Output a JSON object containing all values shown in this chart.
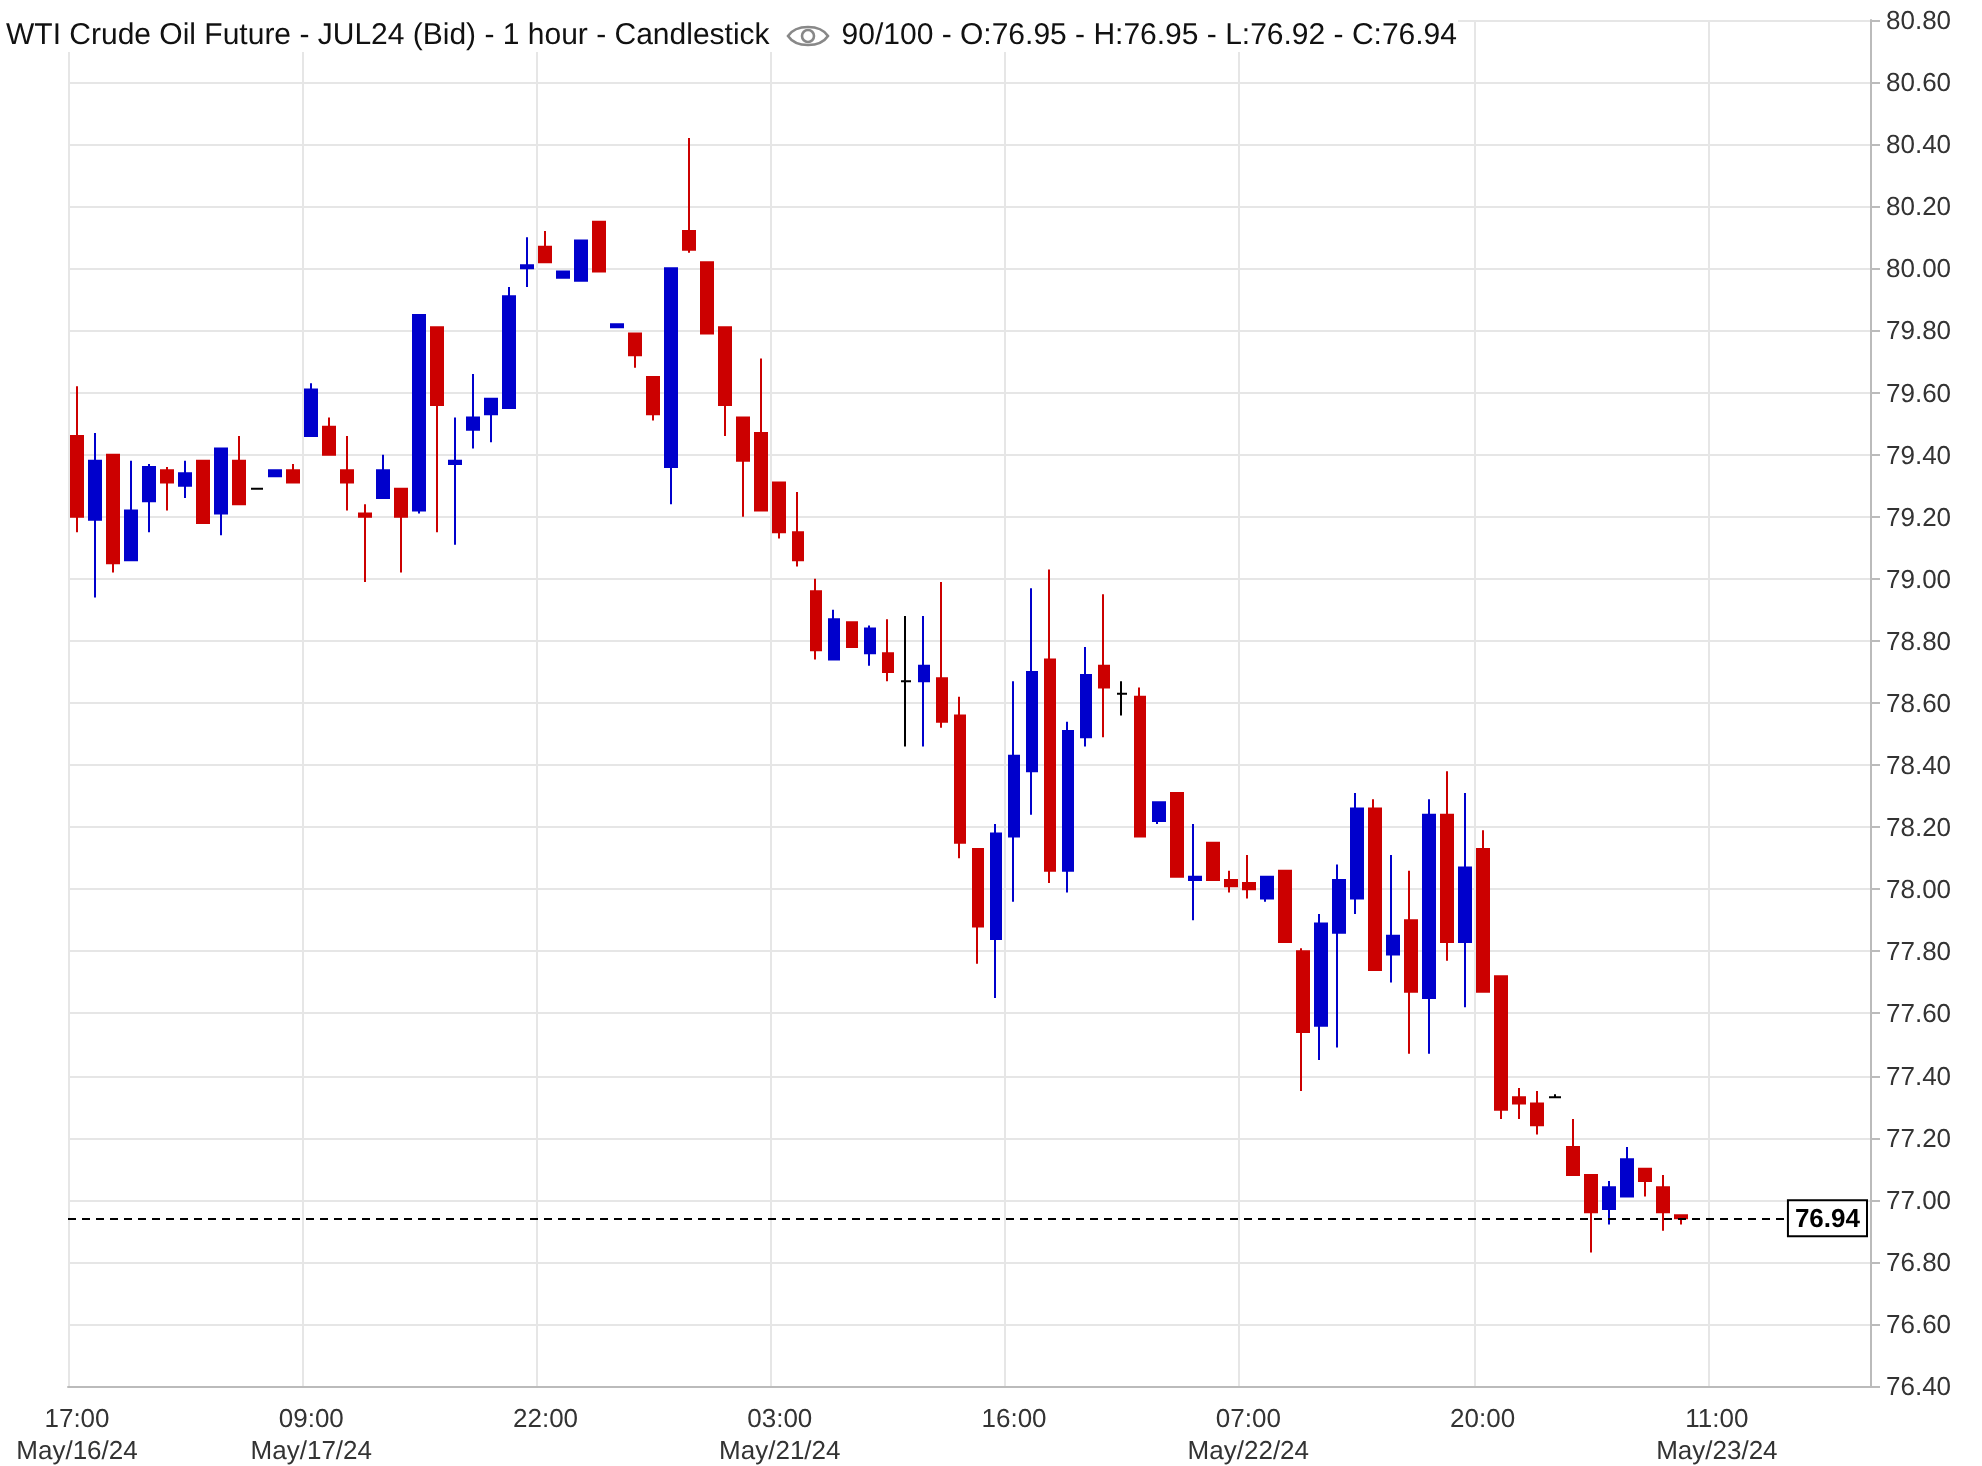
{
  "chart_data": {
    "type": "candlestick",
    "title": "WTI Crude Oil Future - JUL24 (Bid) - 1 hour - Candlestick",
    "subtitle": "90/100 - O:76.95 - H:76.95 - L:76.92 - C:76.94",
    "categories": [
      "17:00\nMay/16/24",
      null,
      null,
      null,
      null,
      null,
      null,
      null,
      null,
      null,
      null,
      null,
      null,
      "09:00\nMay/17/24",
      null,
      null,
      null,
      null,
      null,
      null,
      null,
      null,
      null,
      null,
      null,
      null,
      "22:00",
      null,
      null,
      null,
      null,
      null,
      null,
      null,
      null,
      null,
      null,
      null,
      null,
      "03:00\nMay/21/24",
      null,
      null,
      null,
      null,
      null,
      null,
      null,
      null,
      null,
      null,
      null,
      null,
      "16:00",
      null,
      null,
      null,
      null,
      null,
      null,
      null,
      null,
      null,
      null,
      null,
      null,
      "07:00\nMay/22/24",
      null,
      null,
      null,
      null,
      null,
      null,
      null,
      null,
      null,
      null,
      null,
      null,
      "20:00",
      null,
      null,
      null,
      null,
      null,
      null,
      null,
      null,
      null,
      null,
      null,
      null,
      "11:00\nMay/23/24",
      null,
      null,
      null,
      null,
      null,
      null,
      null,
      null
    ],
    "ohlc": [
      [
        79.46,
        79.62,
        79.15,
        79.2
      ],
      [
        79.19,
        79.47,
        78.94,
        79.38
      ],
      [
        79.4,
        79.4,
        79.02,
        79.05
      ],
      [
        79.06,
        79.38,
        79.06,
        79.22
      ],
      [
        79.25,
        79.37,
        79.15,
        79.36
      ],
      [
        79.35,
        79.36,
        79.22,
        79.31
      ],
      [
        79.3,
        79.38,
        79.26,
        79.34
      ],
      [
        79.38,
        79.38,
        79.18,
        79.18
      ],
      [
        79.21,
        79.42,
        79.14,
        79.42
      ],
      [
        79.38,
        79.46,
        79.24,
        79.24
      ],
      [
        79.29,
        79.29,
        79.29,
        79.29
      ],
      [
        79.33,
        79.35,
        79.33,
        79.35
      ],
      [
        79.35,
        79.37,
        79.31,
        79.31
      ],
      [
        79.46,
        79.63,
        79.46,
        79.61
      ],
      [
        79.49,
        79.52,
        79.4,
        79.4
      ],
      [
        79.35,
        79.46,
        79.22,
        79.31
      ],
      [
        79.21,
        79.24,
        78.99,
        79.2
      ],
      [
        79.26,
        79.4,
        79.26,
        79.35
      ],
      [
        79.29,
        79.29,
        79.02,
        79.2
      ],
      [
        79.22,
        79.85,
        79.21,
        79.85
      ],
      [
        79.81,
        79.81,
        79.15,
        79.56
      ],
      [
        79.37,
        79.52,
        79.11,
        79.38
      ],
      [
        79.48,
        79.66,
        79.42,
        79.52
      ],
      [
        79.53,
        79.58,
        79.44,
        79.58
      ],
      [
        79.55,
        79.94,
        79.55,
        79.91
      ],
      [
        80.0,
        80.1,
        79.94,
        80.01
      ],
      [
        80.07,
        80.12,
        80.02,
        80.02
      ],
      [
        79.97,
        79.99,
        79.97,
        79.99
      ],
      [
        79.96,
        80.09,
        79.96,
        80.09
      ],
      [
        80.15,
        80.15,
        79.99,
        79.99
      ],
      [
        79.81,
        79.82,
        79.81,
        79.82
      ],
      [
        79.79,
        79.79,
        79.68,
        79.72
      ],
      [
        79.65,
        79.65,
        79.51,
        79.53
      ],
      [
        79.36,
        80.0,
        79.24,
        80.0
      ],
      [
        80.12,
        80.42,
        80.05,
        80.06
      ],
      [
        80.02,
        80.02,
        79.79,
        79.79
      ],
      [
        79.81,
        79.81,
        79.46,
        79.56
      ],
      [
        79.52,
        79.52,
        79.2,
        79.38
      ],
      [
        79.47,
        79.71,
        79.22,
        79.22
      ],
      [
        79.31,
        79.31,
        79.13,
        79.15
      ],
      [
        79.15,
        79.28,
        79.04,
        79.06
      ],
      [
        78.96,
        79.0,
        78.74,
        78.77
      ],
      [
        78.74,
        78.9,
        78.74,
        78.87
      ],
      [
        78.86,
        78.86,
        78.78,
        78.78
      ],
      [
        78.76,
        78.85,
        78.72,
        78.84
      ],
      [
        78.76,
        78.87,
        78.67,
        78.7
      ],
      [
        78.67,
        78.88,
        78.46,
        78.67
      ],
      [
        78.67,
        78.88,
        78.46,
        78.72
      ],
      [
        78.68,
        78.99,
        78.52,
        78.54
      ],
      [
        78.56,
        78.62,
        78.1,
        78.15
      ],
      [
        78.13,
        78.13,
        77.76,
        77.88
      ],
      [
        77.84,
        78.21,
        77.65,
        78.18
      ],
      [
        78.17,
        78.67,
        77.96,
        78.43
      ],
      [
        78.38,
        78.97,
        78.24,
        78.7
      ],
      [
        78.74,
        79.03,
        78.02,
        78.06
      ],
      [
        78.06,
        78.54,
        77.99,
        78.51
      ],
      [
        78.49,
        78.78,
        78.46,
        78.69
      ],
      [
        78.72,
        78.95,
        78.49,
        78.65
      ],
      [
        78.63,
        78.67,
        78.56,
        78.63
      ],
      [
        78.62,
        78.65,
        78.17,
        78.17
      ],
      [
        78.22,
        78.28,
        78.21,
        78.28
      ],
      [
        78.31,
        78.31,
        78.04,
        78.04
      ],
      [
        78.03,
        78.21,
        77.9,
        78.04
      ],
      [
        78.15,
        78.15,
        78.03,
        78.03
      ],
      [
        78.03,
        78.06,
        77.99,
        78.01
      ],
      [
        78.02,
        78.11,
        77.97,
        78.0
      ],
      [
        77.97,
        78.04,
        77.96,
        78.04
      ],
      [
        78.06,
        78.06,
        77.83,
        77.83
      ],
      [
        77.8,
        77.81,
        77.35,
        77.54
      ],
      [
        77.56,
        77.92,
        77.45,
        77.89
      ],
      [
        77.86,
        78.08,
        77.49,
        78.03
      ],
      [
        77.97,
        78.31,
        77.92,
        78.26
      ],
      [
        78.26,
        78.29,
        77.74,
        77.74
      ],
      [
        77.79,
        78.11,
        77.7,
        77.85
      ],
      [
        77.9,
        78.06,
        77.47,
        77.67
      ],
      [
        77.65,
        78.29,
        77.47,
        78.24
      ],
      [
        78.24,
        78.38,
        77.77,
        77.83
      ],
      [
        77.83,
        78.31,
        77.62,
        78.07
      ],
      [
        78.13,
        78.19,
        77.67,
        77.67
      ],
      [
        77.72,
        77.72,
        77.26,
        77.29
      ],
      [
        77.33,
        77.36,
        77.26,
        77.31
      ],
      [
        77.31,
        77.35,
        77.21,
        77.24
      ],
      [
        77.33,
        77.34,
        77.33,
        77.33
      ],
      [
        77.17,
        77.26,
        77.08,
        77.08
      ],
      [
        77.08,
        77.08,
        76.83,
        76.96
      ],
      [
        76.97,
        77.06,
        76.92,
        77.04
      ],
      [
        77.01,
        77.17,
        77.01,
        77.13
      ],
      [
        77.1,
        77.1,
        77.01,
        77.06
      ],
      [
        77.04,
        77.08,
        76.9,
        76.96
      ],
      [
        76.95,
        76.95,
        76.92,
        76.94
      ],
      null,
      null,
      null,
      null,
      null,
      null,
      null,
      null,
      null,
      null
    ],
    "colors": [
      "#cc0000",
      "#0000cc",
      "#cc0000",
      "#0000cc",
      "#0000cc",
      "#cc0000",
      "#0000cc",
      "#cc0000",
      "#0000cc",
      "#cc0000",
      "#000000",
      "#0000cc",
      "#cc0000",
      "#0000cc",
      "#cc0000",
      "#cc0000",
      "#cc0000",
      "#0000cc",
      "#cc0000",
      "#0000cc",
      "#cc0000",
      "#0000cc",
      "#0000cc",
      "#0000cc",
      "#0000cc",
      "#0000cc",
      "#cc0000",
      "#0000cc",
      "#0000cc",
      "#cc0000",
      "#0000cc",
      "#cc0000",
      "#cc0000",
      "#0000cc",
      "#cc0000",
      "#cc0000",
      "#cc0000",
      "#cc0000",
      "#cc0000",
      "#cc0000",
      "#cc0000",
      "#cc0000",
      "#0000cc",
      "#cc0000",
      "#0000cc",
      "#cc0000",
      "#000000",
      "#0000cc",
      "#cc0000",
      "#cc0000",
      "#cc0000",
      "#0000cc",
      "#0000cc",
      "#0000cc",
      "#cc0000",
      "#0000cc",
      "#0000cc",
      "#cc0000",
      "#000000",
      "#cc0000",
      "#0000cc",
      "#cc0000",
      "#0000cc",
      "#cc0000",
      "#cc0000",
      "#cc0000",
      "#0000cc",
      "#cc0000",
      "#cc0000",
      "#0000cc",
      "#0000cc",
      "#0000cc",
      "#cc0000",
      "#0000cc",
      "#cc0000",
      "#0000cc",
      "#cc0000",
      "#0000cc",
      "#cc0000",
      "#cc0000",
      "#cc0000",
      "#cc0000",
      "#000000",
      "#cc0000",
      "#cc0000",
      "#0000cc",
      "#0000cc",
      "#cc0000",
      "#cc0000",
      "#cc0000",
      null,
      null,
      null,
      null,
      null,
      null,
      null,
      null,
      null,
      null
    ],
    "ylim": [
      76.4,
      80.8
    ],
    "yticks": [
      {
        "value": 76.4,
        "label": "76.40"
      },
      {
        "value": 76.6,
        "label": "76.60"
      },
      {
        "value": 76.8,
        "label": "76.80"
      },
      {
        "value": 77.0,
        "label": "77.00"
      },
      {
        "value": 77.2,
        "label": "77.20"
      },
      {
        "value": 77.4,
        "label": "77.40"
      },
      {
        "value": 77.6,
        "label": "77.60"
      },
      {
        "value": 77.8,
        "label": "77.80"
      },
      {
        "value": 78.0,
        "label": "78.00"
      },
      {
        "value": 78.2,
        "label": "78.20"
      },
      {
        "value": 78.4,
        "label": "78.40"
      },
      {
        "value": 78.6,
        "label": "78.60"
      },
      {
        "value": 78.8,
        "label": "78.80"
      },
      {
        "value": 79.0,
        "label": "79.00"
      },
      {
        "value": 79.2,
        "label": "79.20"
      },
      {
        "value": 79.4,
        "label": "79.40"
      },
      {
        "value": 79.6,
        "label": "79.60"
      },
      {
        "value": 79.8,
        "label": "79.80"
      },
      {
        "value": 80.0,
        "label": "80.00"
      },
      {
        "value": 80.2,
        "label": "80.20"
      },
      {
        "value": 80.4,
        "label": "80.40"
      },
      {
        "value": 80.6,
        "label": "80.60"
      },
      {
        "value": 80.8,
        "label": "80.80"
      }
    ],
    "grid": true,
    "ref_lines": [
      {
        "axis": "y",
        "value": 76.94,
        "label": "76.94",
        "color": "#000000",
        "line_style": "dashed"
      }
    ]
  }
}
